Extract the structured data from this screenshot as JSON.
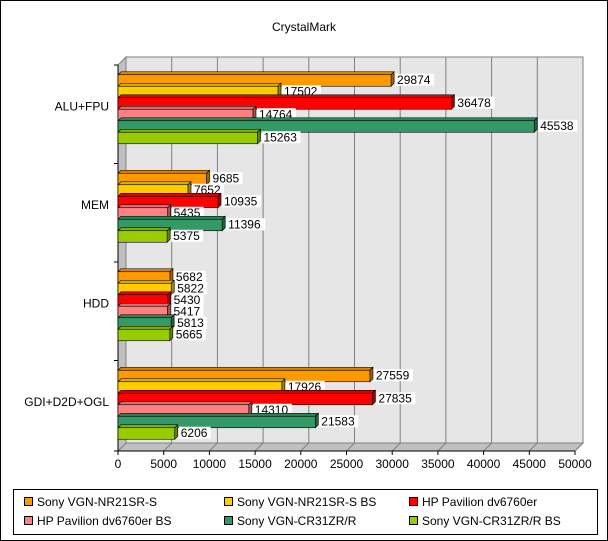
{
  "chart_data": {
    "type": "bar",
    "orientation": "horizontal",
    "title": "CrystalMark",
    "xlabel": "",
    "ylabel": "",
    "xlim": [
      0,
      50000
    ],
    "x_ticks": [
      "0",
      "5000",
      "10000",
      "15000",
      "20000",
      "25000",
      "30000",
      "35000",
      "40000",
      "45000",
      "50000"
    ],
    "grid": true,
    "legend_position": "bottom",
    "categories": [
      "ALU+FPU",
      "MEM",
      "HDD",
      "GDI+D2D+OGL"
    ],
    "series": [
      {
        "name": "Sony VGN-NR21SR-S",
        "color": "#ff9900",
        "values": [
          29874,
          9685,
          5682,
          27559
        ]
      },
      {
        "name": "Sony VGN-NR21SR-S BS",
        "color": "#ffcc00",
        "values": [
          17502,
          7652,
          5822,
          17926
        ]
      },
      {
        "name": "HP Pavilion dv6760er",
        "color": "#ff0000",
        "values": [
          36478,
          10935,
          5430,
          27835
        ]
      },
      {
        "name": "HP Pavilion dv6760er BS",
        "color": "#ff8080",
        "values": [
          14764,
          5435,
          5417,
          14310
        ]
      },
      {
        "name": "Sony VGN-CR31ZR/R",
        "color": "#339966",
        "values": [
          45538,
          11396,
          5813,
          21583
        ]
      },
      {
        "name": "Sony VGN-CR31ZR/R BS",
        "color": "#99cc00",
        "values": [
          15263,
          5375,
          5665,
          6206
        ]
      }
    ]
  }
}
